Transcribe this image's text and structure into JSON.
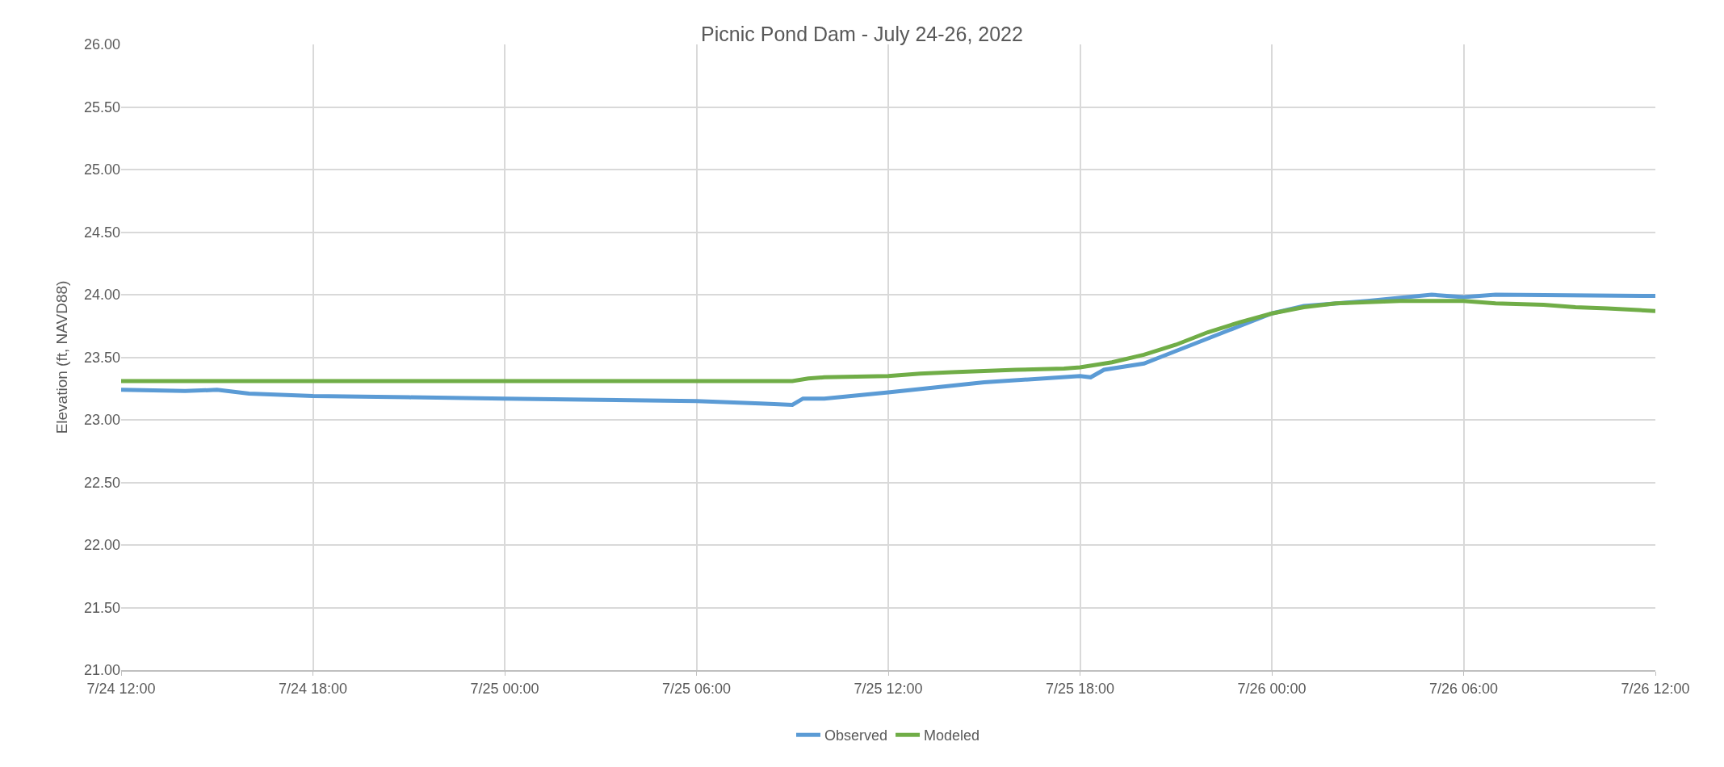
{
  "chart_data": {
    "type": "line",
    "title": "Picnic Pond Dam - July 24-26, 2022",
    "ylabel": "Elevation (ft, NAVD88)",
    "xlim": [
      "2022-07-24T12:00",
      "2022-07-26T12:00"
    ],
    "xticks": [
      {
        "value": "2022-07-24T12:00",
        "label": "7/24 12:00"
      },
      {
        "value": "2022-07-24T18:00",
        "label": "7/24 18:00"
      },
      {
        "value": "2022-07-25T00:00",
        "label": "7/25 00:00"
      },
      {
        "value": "2022-07-25T06:00",
        "label": "7/25 06:00"
      },
      {
        "value": "2022-07-25T12:00",
        "label": "7/25 12:00"
      },
      {
        "value": "2022-07-25T18:00",
        "label": "7/25 18:00"
      },
      {
        "value": "2022-07-26T00:00",
        "label": "7/26 00:00"
      },
      {
        "value": "2022-07-26T06:00",
        "label": "7/26 06:00"
      },
      {
        "value": "2022-07-26T12:00",
        "label": "7/26 12:00"
      }
    ],
    "ylim": [
      21,
      26
    ],
    "yticks": [
      {
        "value": 21,
        "label": "21.00"
      },
      {
        "value": 21.5,
        "label": "21.50"
      },
      {
        "value": 22,
        "label": "22.00"
      },
      {
        "value": 22.5,
        "label": "22.50"
      },
      {
        "value": 23,
        "label": "23.00"
      },
      {
        "value": 23.5,
        "label": "23.50"
      },
      {
        "value": 24,
        "label": "24.00"
      },
      {
        "value": 24.5,
        "label": "24.50"
      },
      {
        "value": 25,
        "label": "25.00"
      },
      {
        "value": 25.5,
        "label": "25.50"
      },
      {
        "value": 26,
        "label": "26.00"
      }
    ],
    "grid": true,
    "legend": "bottom",
    "line_style": "solid",
    "marker": "none",
    "series": [
      {
        "name": "Observed",
        "color": "#5b9bd5",
        "x": [
          "2022-07-24T12:00",
          "2022-07-24T14:00",
          "2022-07-24T15:00",
          "2022-07-24T16:00",
          "2022-07-24T18:00",
          "2022-07-24T21:00",
          "2022-07-25T00:00",
          "2022-07-25T03:00",
          "2022-07-25T06:00",
          "2022-07-25T08:00",
          "2022-07-25T09:00",
          "2022-07-25T09:20",
          "2022-07-25T10:00",
          "2022-07-25T12:00",
          "2022-07-25T15:00",
          "2022-07-25T18:00",
          "2022-07-25T18:20",
          "2022-07-25T18:45",
          "2022-07-25T20:00",
          "2022-07-25T21:00",
          "2022-07-25T22:00",
          "2022-07-25T23:00",
          "2022-07-26T00:00",
          "2022-07-26T01:00",
          "2022-07-26T03:00",
          "2022-07-26T05:00",
          "2022-07-26T06:00",
          "2022-07-26T07:00",
          "2022-07-26T12:00"
        ],
        "values": [
          23.24,
          23.23,
          23.24,
          23.21,
          23.19,
          23.18,
          23.17,
          23.16,
          23.15,
          23.13,
          23.12,
          23.17,
          23.17,
          23.22,
          23.3,
          23.35,
          23.34,
          23.4,
          23.45,
          23.55,
          23.65,
          23.75,
          23.85,
          23.91,
          23.95,
          24.0,
          23.98,
          24.0,
          23.99
        ]
      },
      {
        "name": "Modeled",
        "color": "#70ad47",
        "x": [
          "2022-07-24T12:00",
          "2022-07-25T09:00",
          "2022-07-25T09:30",
          "2022-07-25T10:00",
          "2022-07-25T12:00",
          "2022-07-25T13:00",
          "2022-07-25T14:00",
          "2022-07-25T15:00",
          "2022-07-25T16:00",
          "2022-07-25T17:30",
          "2022-07-25T18:00",
          "2022-07-25T19:00",
          "2022-07-25T20:00",
          "2022-07-25T21:00",
          "2022-07-25T22:00",
          "2022-07-25T23:00",
          "2022-07-26T00:00",
          "2022-07-26T01:00",
          "2022-07-26T02:00",
          "2022-07-26T04:00",
          "2022-07-26T06:00",
          "2022-07-26T07:00",
          "2022-07-26T08:30",
          "2022-07-26T09:30",
          "2022-07-26T10:30",
          "2022-07-26T12:00"
        ],
        "values": [
          23.31,
          23.31,
          23.33,
          23.34,
          23.35,
          23.37,
          23.38,
          23.39,
          23.4,
          23.41,
          23.42,
          23.46,
          23.52,
          23.6,
          23.7,
          23.78,
          23.85,
          23.9,
          23.93,
          23.95,
          23.95,
          23.93,
          23.92,
          23.9,
          23.89,
          23.87
        ]
      }
    ]
  }
}
